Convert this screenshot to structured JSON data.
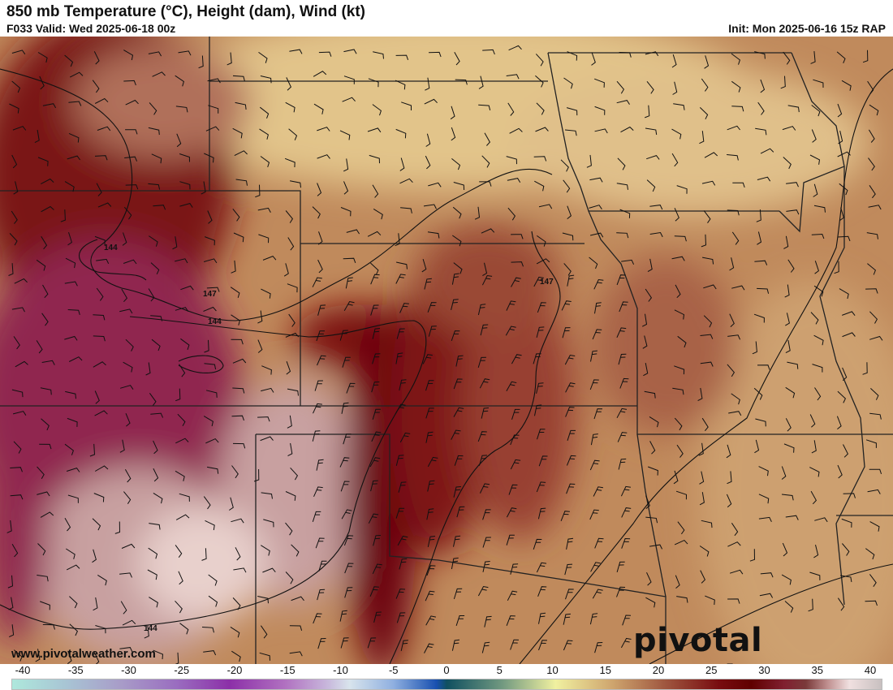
{
  "header": {
    "title": "850 mb Temperature (°C), Height (dam), Wind (kt)",
    "valid": "F033 Valid: Wed 2025-06-18 00z",
    "init": "Init: Mon 2025-06-16 15z RAP"
  },
  "map": {
    "contour_labels": [
      "144",
      "147",
      "144",
      "147",
      "144"
    ],
    "site": "www.pivotalweather.com",
    "brand": "pivotal weather"
  },
  "colorbar": {
    "ticks": [
      "-40",
      "-35",
      "-30",
      "-25",
      "-20",
      "-15",
      "-10",
      "-5",
      "0",
      "5",
      "10",
      "15",
      "20",
      "25",
      "30",
      "35",
      "40"
    ],
    "units": "°C",
    "stops": [
      {
        "v": -40,
        "c": "#aee8dc"
      },
      {
        "v": -35,
        "c": "#a8c4d4"
      },
      {
        "v": -30,
        "c": "#a89cc8"
      },
      {
        "v": -25,
        "c": "#9a6ec0"
      },
      {
        "v": -20,
        "c": "#8c30a8"
      },
      {
        "v": -15,
        "c": "#b070c0"
      },
      {
        "v": -11,
        "c": "#c8b8dc"
      },
      {
        "v": -9,
        "c": "#d8e4ec"
      },
      {
        "v": -5,
        "c": "#90b0e0"
      },
      {
        "v": -1,
        "c": "#1850b0"
      },
      {
        "v": 0,
        "c": "#105060"
      },
      {
        "v": 5,
        "c": "#709880"
      },
      {
        "v": 10,
        "c": "#f0f0a0"
      },
      {
        "v": 15,
        "c": "#d0a870"
      },
      {
        "v": 20,
        "c": "#a05840"
      },
      {
        "v": 25,
        "c": "#780c10"
      },
      {
        "v": 28,
        "c": "#600000"
      },
      {
        "v": 31,
        "c": "#802030"
      },
      {
        "v": 33,
        "c": "#7a3a3a"
      },
      {
        "v": 35,
        "c": "#c09090"
      },
      {
        "v": 37,
        "c": "#f0e0e0"
      },
      {
        "v": 40,
        "c": "#c8c0c0"
      }
    ]
  }
}
